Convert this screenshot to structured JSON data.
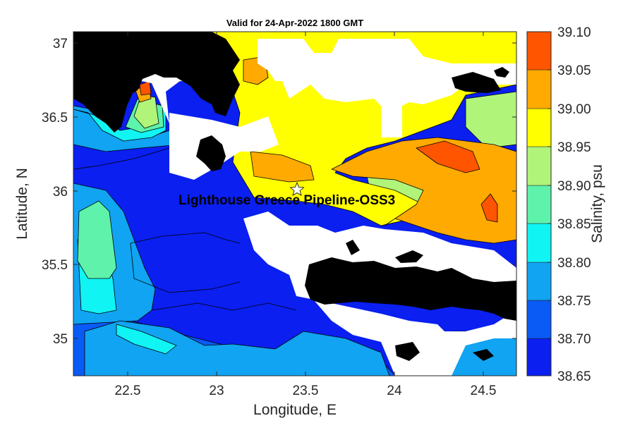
{
  "figure": {
    "title": "Valid for 24-Apr-2022 1800 GMT",
    "xlabel": "Longitude, E",
    "ylabel": "Latitude, N",
    "colorbar_label": "Salinity, psu",
    "annotation": "Lighthouse Greece Pipeline-OSS3"
  },
  "chart_data": {
    "type": "heatmap",
    "title": "Valid for 24-Apr-2022 1800 GMT",
    "xlabel": "Longitude, E",
    "ylabel": "Latitude, N",
    "xlim": [
      22.22,
      24.65
    ],
    "ylim": [
      34.73,
      37.07
    ],
    "x_ticks": [
      22.5,
      23,
      23.5,
      24,
      24.5
    ],
    "x_tick_labels": [
      "22.5",
      "23",
      "23.5",
      "24",
      "24.5"
    ],
    "y_ticks": [
      35,
      35.5,
      36,
      36.5,
      37
    ],
    "y_tick_labels": [
      "35",
      "35.5",
      "36",
      "36.5",
      "37"
    ],
    "variable": "Salinity, psu",
    "colorbar": {
      "levels": [
        38.65,
        38.7,
        38.75,
        38.8,
        38.85,
        38.9,
        38.95,
        39.0,
        39.05,
        39.1
      ],
      "level_labels": [
        "38.65",
        "38.70",
        "38.75",
        "38.80",
        "38.85",
        "38.90",
        "38.95",
        "39.00",
        "39.05",
        "39.10"
      ],
      "colors": [
        "#0a1ff0",
        "#0a5af5",
        "#10a4f2",
        "#10f4f4",
        "#5ef2aa",
        "#b0f47a",
        "#ffff00",
        "#ffaa00",
        "#ff5500"
      ]
    },
    "marker": {
      "label": "Lighthouse Greece Pipeline-OSS3",
      "lon": 23.45,
      "lat": 36.0,
      "symbol": "star"
    },
    "grid": false,
    "legend": "colorbar-right"
  },
  "colors": {
    "land": "#000000",
    "nodata": "#ffffff",
    "contour_line": "#000000"
  }
}
